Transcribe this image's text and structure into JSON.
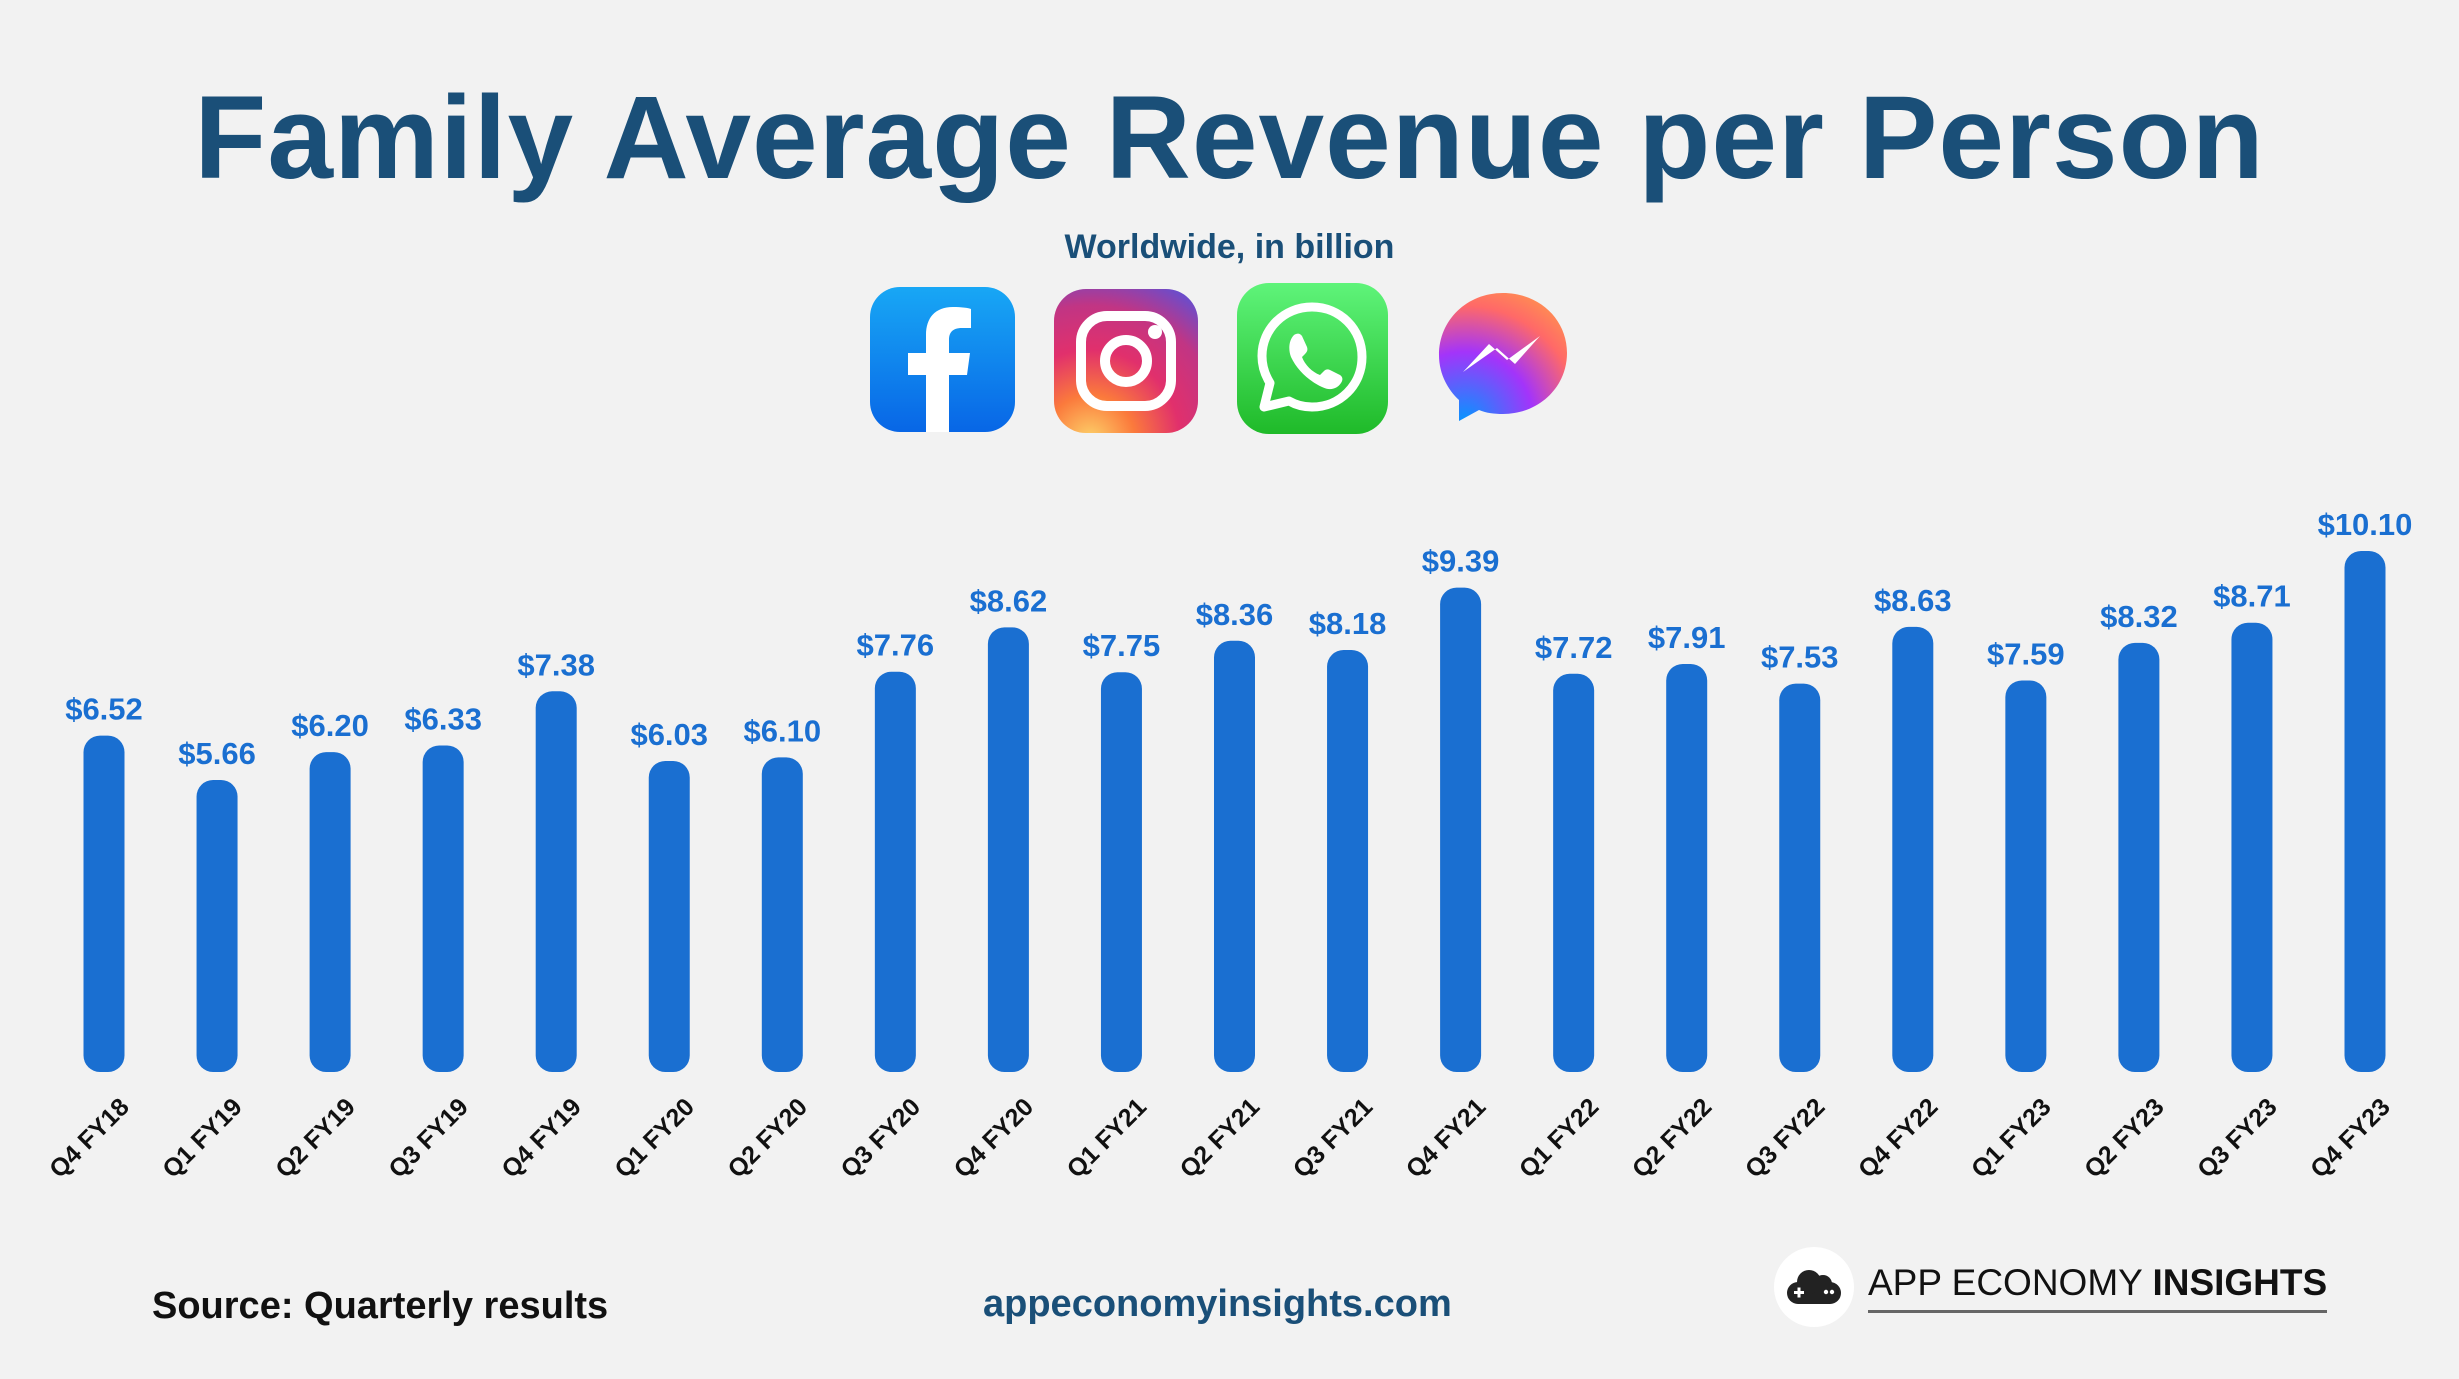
{
  "title": "Family Average Revenue per Person",
  "subtitle": "Worldwide, in billion",
  "icons": [
    "facebook-icon",
    "instagram-icon",
    "whatsapp-icon",
    "messenger-icon"
  ],
  "colors": {
    "bar": "#1a6fd1",
    "title": "#1a4f78",
    "background": "#f2f2f2"
  },
  "chart_data": {
    "type": "bar",
    "title": "Family Average Revenue per Person",
    "subtitle": "Worldwide, in billion",
    "xlabel": "",
    "ylabel": "",
    "ylim": [
      0,
      10.1
    ],
    "value_prefix": "$",
    "categories": [
      "Q4 FY18",
      "Q1 FY19",
      "Q2 FY19",
      "Q3 FY19",
      "Q4 FY19",
      "Q1 FY20",
      "Q2 FY20",
      "Q3 FY20",
      "Q4 FY20",
      "Q1 FY21",
      "Q2 FY21",
      "Q3 FY21",
      "Q4 FY21",
      "Q1 FY22",
      "Q2 FY22",
      "Q3 FY22",
      "Q4 FY22",
      "Q1 FY23",
      "Q2 FY23",
      "Q3 FY23",
      "Q4 FY23"
    ],
    "values": [
      6.52,
      5.66,
      6.2,
      6.33,
      7.38,
      6.03,
      6.1,
      7.76,
      8.62,
      7.75,
      8.36,
      8.18,
      9.39,
      7.72,
      7.91,
      7.53,
      8.63,
      7.59,
      8.32,
      8.71,
      10.1
    ],
    "labels": [
      "$6.52",
      "$5.66",
      "$6.20",
      "$6.33",
      "$7.38",
      "$6.03",
      "$6.10",
      "$7.76",
      "$8.62",
      "$7.75",
      "$8.36",
      "$8.18",
      "$9.39",
      "$7.72",
      "$7.91",
      "$7.53",
      "$8.63",
      "$7.59",
      "$8.32",
      "$8.71",
      "$10.10"
    ]
  },
  "footer": {
    "source": "Source: Quarterly results",
    "site": "appeconomyinsights.com",
    "brand_regular": "APP ECONOMY ",
    "brand_bold": "INSIGHTS"
  }
}
